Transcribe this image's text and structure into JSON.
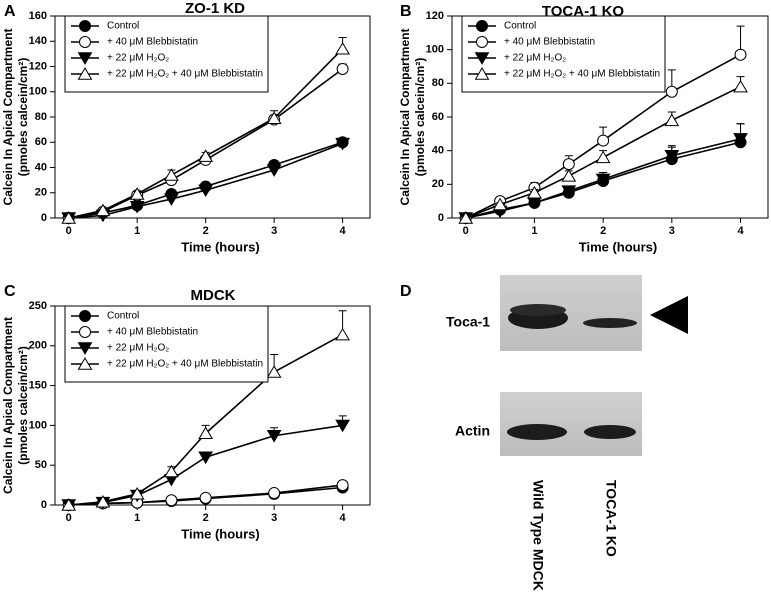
{
  "chart_data": [
    {
      "type": "line",
      "panel": "A",
      "title": "ZO-1 KD",
      "xlabel": "Time (hours)",
      "ylabel": [
        "Calcein In Apical Compartment",
        "(pmoles calcein/cm²)"
      ],
      "x": [
        0,
        0.5,
        1,
        1.5,
        2,
        3,
        4
      ],
      "xlim": [
        -0.2,
        4.4
      ],
      "xticks": [
        0,
        1,
        2,
        3,
        4
      ],
      "ylim": [
        0,
        160
      ],
      "yticks": [
        0,
        20,
        40,
        60,
        80,
        100,
        120,
        140,
        160
      ],
      "legend": "upper left",
      "series": [
        {
          "name": "Control",
          "color": "#000000",
          "marker": "circle-filled",
          "values": [
            0,
            4,
            10,
            19,
            25,
            42,
            60
          ],
          "errors": [
            0,
            0,
            1,
            1,
            1,
            2,
            2
          ]
        },
        {
          "name": "+ 40 μM Blebbistatin",
          "color": "#000000",
          "marker": "circle-open",
          "values": [
            0,
            5,
            18,
            30,
            46,
            78,
            118
          ],
          "errors": [
            0,
            1,
            1,
            2,
            2,
            3,
            4
          ]
        },
        {
          "name": "+ 22 μM H₂O₂",
          "color": "#000000",
          "marker": "triangle-down-filled",
          "values": [
            0,
            2,
            9,
            15,
            22,
            38,
            59
          ],
          "errors": [
            0,
            0,
            1,
            1,
            1,
            2,
            2
          ]
        },
        {
          "name": "+ 22 μM H₂O₂ + 40 μM Blebbistatin",
          "color": "#000000",
          "marker": "triangle-up-open",
          "values": [
            0,
            6,
            19,
            34,
            49,
            79,
            134
          ],
          "errors": [
            0,
            1,
            2,
            4,
            3,
            6,
            9
          ]
        }
      ]
    },
    {
      "type": "line",
      "panel": "B",
      "title": "TOCA-1 KO",
      "xlabel": "Time (hours)",
      "ylabel": [
        "Calcein In Apical Compartment",
        "(pmoles calcein/cm²)"
      ],
      "x": [
        0,
        0.5,
        1,
        1.5,
        2,
        3,
        4
      ],
      "xlim": [
        -0.2,
        4.4
      ],
      "xticks": [
        0,
        1,
        2,
        3,
        4
      ],
      "ylim": [
        0,
        120
      ],
      "yticks": [
        0,
        20,
        40,
        60,
        80,
        100,
        120
      ],
      "legend": "upper left",
      "series": [
        {
          "name": "Control",
          "color": "#000000",
          "marker": "circle-filled",
          "values": [
            0,
            5,
            9,
            15,
            22,
            35,
            45
          ],
          "errors": [
            0,
            1,
            1,
            3,
            4,
            7,
            11
          ]
        },
        {
          "name": "+ 40 μM Blebbistatin",
          "color": "#000000",
          "marker": "circle-open",
          "values": [
            0,
            10,
            18,
            32,
            46,
            75,
            97
          ],
          "errors": [
            0,
            2,
            3,
            5,
            8,
            13,
            17
          ]
        },
        {
          "name": "+ 22 μM H₂O₂",
          "color": "#000000",
          "marker": "triangle-down-filled",
          "values": [
            0,
            4,
            9,
            16,
            23,
            37,
            47
          ],
          "errors": [
            0,
            1,
            2,
            3,
            4,
            6,
            9
          ]
        },
        {
          "name": "+ 22 μM H₂O₂ + 40 μM Blebbistatin",
          "color": "#000000",
          "marker": "triangle-up-open",
          "values": [
            0,
            8,
            15,
            25,
            36,
            58,
            78
          ],
          "errors": [
            0,
            1,
            2,
            3,
            4,
            5,
            6
          ]
        }
      ]
    },
    {
      "type": "line",
      "panel": "C",
      "title": "MDCK",
      "xlabel": "Time (hours)",
      "ylabel": [
        "Calcein In Apical Compartment",
        "(pmoles calcein/cm²)"
      ],
      "x": [
        0,
        0.5,
        1,
        1.5,
        2,
        3,
        4
      ],
      "xlim": [
        -0.2,
        4.4
      ],
      "xticks": [
        0,
        1,
        2,
        3,
        4
      ],
      "ylim": [
        0,
        250
      ],
      "yticks": [
        0,
        50,
        100,
        150,
        200,
        250
      ],
      "legend": "upper left",
      "series": [
        {
          "name": "Control",
          "color": "#000000",
          "marker": "circle-filled",
          "values": [
            0,
            2,
            3,
            5,
            8,
            14,
            22
          ],
          "errors": [
            0,
            0,
            0,
            1,
            1,
            1,
            2
          ]
        },
        {
          "name": "+ 40 μM Blebbistatin",
          "color": "#000000",
          "marker": "circle-open",
          "values": [
            0,
            2,
            3,
            6,
            9,
            15,
            25
          ],
          "errors": [
            0,
            0,
            0,
            1,
            1,
            1,
            2
          ]
        },
        {
          "name": "+ 22 μM H₂O₂",
          "color": "#000000",
          "marker": "triangle-down-filled",
          "values": [
            0,
            3,
            12,
            32,
            60,
            87,
            100
          ],
          "errors": [
            0,
            1,
            2,
            4,
            6,
            10,
            12
          ]
        },
        {
          "name": "+ 22 μM H₂O₂ + 40 μM Blebbistatin",
          "color": "#000000",
          "marker": "triangle-up-open",
          "values": [
            0,
            4,
            14,
            42,
            90,
            167,
            214
          ],
          "errors": [
            0,
            1,
            3,
            6,
            10,
            22,
            30
          ]
        }
      ]
    }
  ],
  "blot": {
    "panel": "D",
    "bands": [
      "Toca-1",
      "Actin"
    ],
    "lanes": [
      "Wild Type MDCK",
      "TOCA-1 KO"
    ]
  }
}
